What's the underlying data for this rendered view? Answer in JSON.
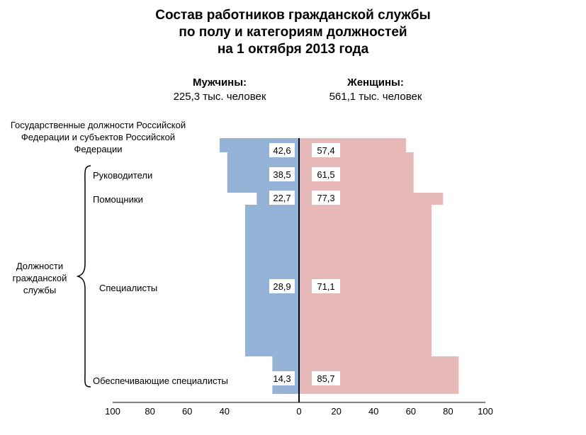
{
  "title": {
    "line1": "Состав работников гражданской службы",
    "line2": "по полу и категориям должностей",
    "line3": "на 1 октября 2013 года"
  },
  "men": {
    "label": "Мужчины:",
    "total": "225,3 тыс. человек"
  },
  "women": {
    "label": "Женщины:",
    "total": "561,1 тыс. человек"
  },
  "group_label": "Должности гражданской службы",
  "chart_data": {
    "type": "bar",
    "orientation": "horizontal-population-pyramid",
    "categories": [
      "Государственные должности Российской Федерации и субъектов Российской Федерации",
      "Руководители",
      "Помощники",
      "Специалисты",
      "Обеспечивающие специалисты"
    ],
    "series": [
      {
        "name": "Мужчины:",
        "values": [
          42.6,
          38.5,
          22.7,
          28.9,
          14.3
        ],
        "labels": [
          "42,6",
          "38,5",
          "22,7",
          "28,9",
          "14,3"
        ],
        "color": "#95b3d7"
      },
      {
        "name": "Женщины:",
        "values": [
          57.4,
          61.5,
          77.3,
          71.1,
          85.7
        ],
        "labels": [
          "57,4",
          "61,5",
          "77,3",
          "71,1",
          "85,7"
        ],
        "color": "#e6b9b8"
      }
    ],
    "x_ticks_left": [
      "100",
      "80",
      "60",
      "40"
    ],
    "x_ticks_right": [
      "0",
      "20",
      "40",
      "60",
      "80",
      "100"
    ],
    "xlim": [
      -100,
      100
    ],
    "grid": false
  }
}
